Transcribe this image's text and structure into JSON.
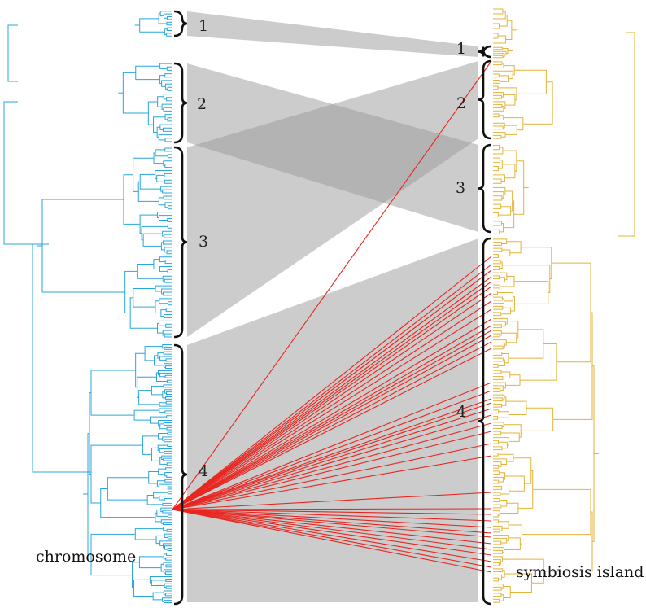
{
  "diagram": {
    "left_tree_label": "chromosome",
    "right_tree_label": "symbiosis island",
    "left_tree_color": "#29a6dc",
    "right_tree_color": "#e3b33a",
    "band_color": "#b9b9b9",
    "link_color": "#e8261f",
    "bracket_color": "#111111",
    "left_clades": [
      "1",
      "2",
      "3",
      "4"
    ],
    "right_clades": [
      "1",
      "2",
      "3",
      "4"
    ]
  }
}
